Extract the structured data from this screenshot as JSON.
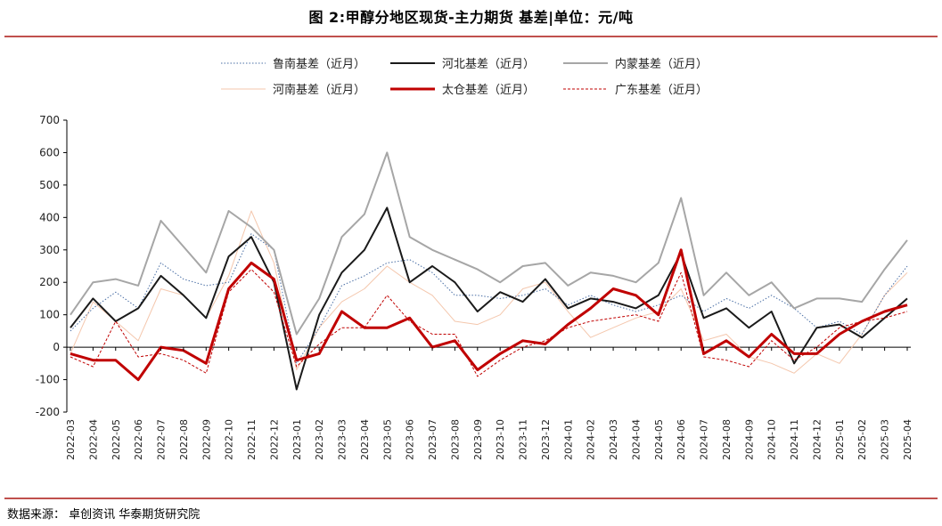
{
  "title": "图 2:甲醇分地区现货-主力期货 基差|单位：元/吨",
  "source": "数据来源： 卓创资讯 华泰期货研究院",
  "colors": {
    "rule": "#c0504d"
  },
  "chart_data": {
    "type": "line",
    "title": "图 2:甲醇分地区现货-主力期货 基差|单位：元/吨",
    "ylabel": "元/吨",
    "ylim": [
      -200,
      700
    ],
    "yticks": [
      -200,
      -100,
      0,
      100,
      200,
      300,
      400,
      500,
      600,
      700
    ],
    "x": [
      "2022-03",
      "2022-04",
      "2022-05",
      "2022-06",
      "2022-07",
      "2022-08",
      "2022-09",
      "2022-10",
      "2022-11",
      "2022-12",
      "2023-01",
      "2023-02",
      "2023-03",
      "2023-04",
      "2023-05",
      "2023-06",
      "2023-07",
      "2023-08",
      "2023-09",
      "2023-10",
      "2023-11",
      "2023-12",
      "2024-01",
      "2024-02",
      "2024-03",
      "2024-04",
      "2024-05",
      "2024-06",
      "2024-07",
      "2024-08",
      "2024-09",
      "2024-10",
      "2024-11",
      "2024-12",
      "2025-01",
      "2025-02",
      "2025-03",
      "2025-04"
    ],
    "legend_position": "top",
    "series": [
      {
        "name": "鲁南基差（近月）",
        "color": "#4a6fa5",
        "style": "dotted",
        "width": 1,
        "values": [
          50,
          120,
          170,
          120,
          260,
          210,
          190,
          200,
          350,
          300,
          -50,
          60,
          190,
          220,
          260,
          270,
          230,
          160,
          160,
          150,
          160,
          180,
          130,
          160,
          130,
          110,
          130,
          160,
          110,
          150,
          120,
          160,
          120,
          60,
          80,
          40,
          160,
          250
        ]
      },
      {
        "name": "河北基差（近月）",
        "color": "#1a1a1a",
        "style": "solid",
        "width": 2,
        "values": [
          60,
          150,
          80,
          120,
          220,
          160,
          90,
          280,
          340,
          200,
          -130,
          100,
          230,
          300,
          430,
          200,
          250,
          200,
          110,
          170,
          140,
          210,
          120,
          150,
          140,
          120,
          160,
          290,
          90,
          120,
          60,
          110,
          -50,
          60,
          70,
          30,
          90,
          150
        ]
      },
      {
        "name": "内蒙基差（近月）",
        "color": "#a6a6a6",
        "style": "solid",
        "width": 2,
        "values": [
          100,
          200,
          210,
          190,
          390,
          310,
          230,
          420,
          370,
          300,
          40,
          150,
          340,
          410,
          600,
          340,
          300,
          270,
          240,
          200,
          250,
          260,
          190,
          230,
          220,
          200,
          260,
          460,
          160,
          230,
          160,
          200,
          120,
          150,
          150,
          140,
          240,
          330
        ]
      },
      {
        "name": "河南基差（近月）",
        "color": "#f4c7ad",
        "style": "solid",
        "width": 1,
        "values": [
          -20,
          140,
          80,
          20,
          180,
          160,
          90,
          220,
          420,
          260,
          -70,
          60,
          140,
          180,
          250,
          200,
          160,
          80,
          70,
          100,
          180,
          200,
          110,
          30,
          60,
          90,
          110,
          180,
          20,
          40,
          -30,
          -50,
          -80,
          -20,
          -50,
          40,
          160,
          230
        ]
      },
      {
        "name": "太仓基差（近月）",
        "color": "#c00000",
        "style": "solid",
        "width": 3,
        "values": [
          -20,
          -40,
          -40,
          -100,
          0,
          -10,
          -50,
          180,
          260,
          210,
          -40,
          -20,
          110,
          60,
          60,
          90,
          0,
          20,
          -70,
          -20,
          20,
          10,
          70,
          120,
          180,
          160,
          100,
          300,
          -20,
          20,
          -30,
          40,
          -20,
          -20,
          40,
          80,
          110,
          130
        ]
      },
      {
        "name": "广东基差（近月）",
        "color": "#c00000",
        "style": "dashed",
        "width": 1,
        "values": [
          -30,
          -60,
          80,
          -30,
          -20,
          -40,
          -80,
          170,
          240,
          170,
          -60,
          10,
          60,
          60,
          160,
          80,
          40,
          40,
          -90,
          -40,
          0,
          20,
          60,
          80,
          90,
          100,
          80,
          230,
          -30,
          -40,
          -60,
          20,
          -40,
          0,
          60,
          80,
          90,
          110
        ]
      }
    ]
  }
}
